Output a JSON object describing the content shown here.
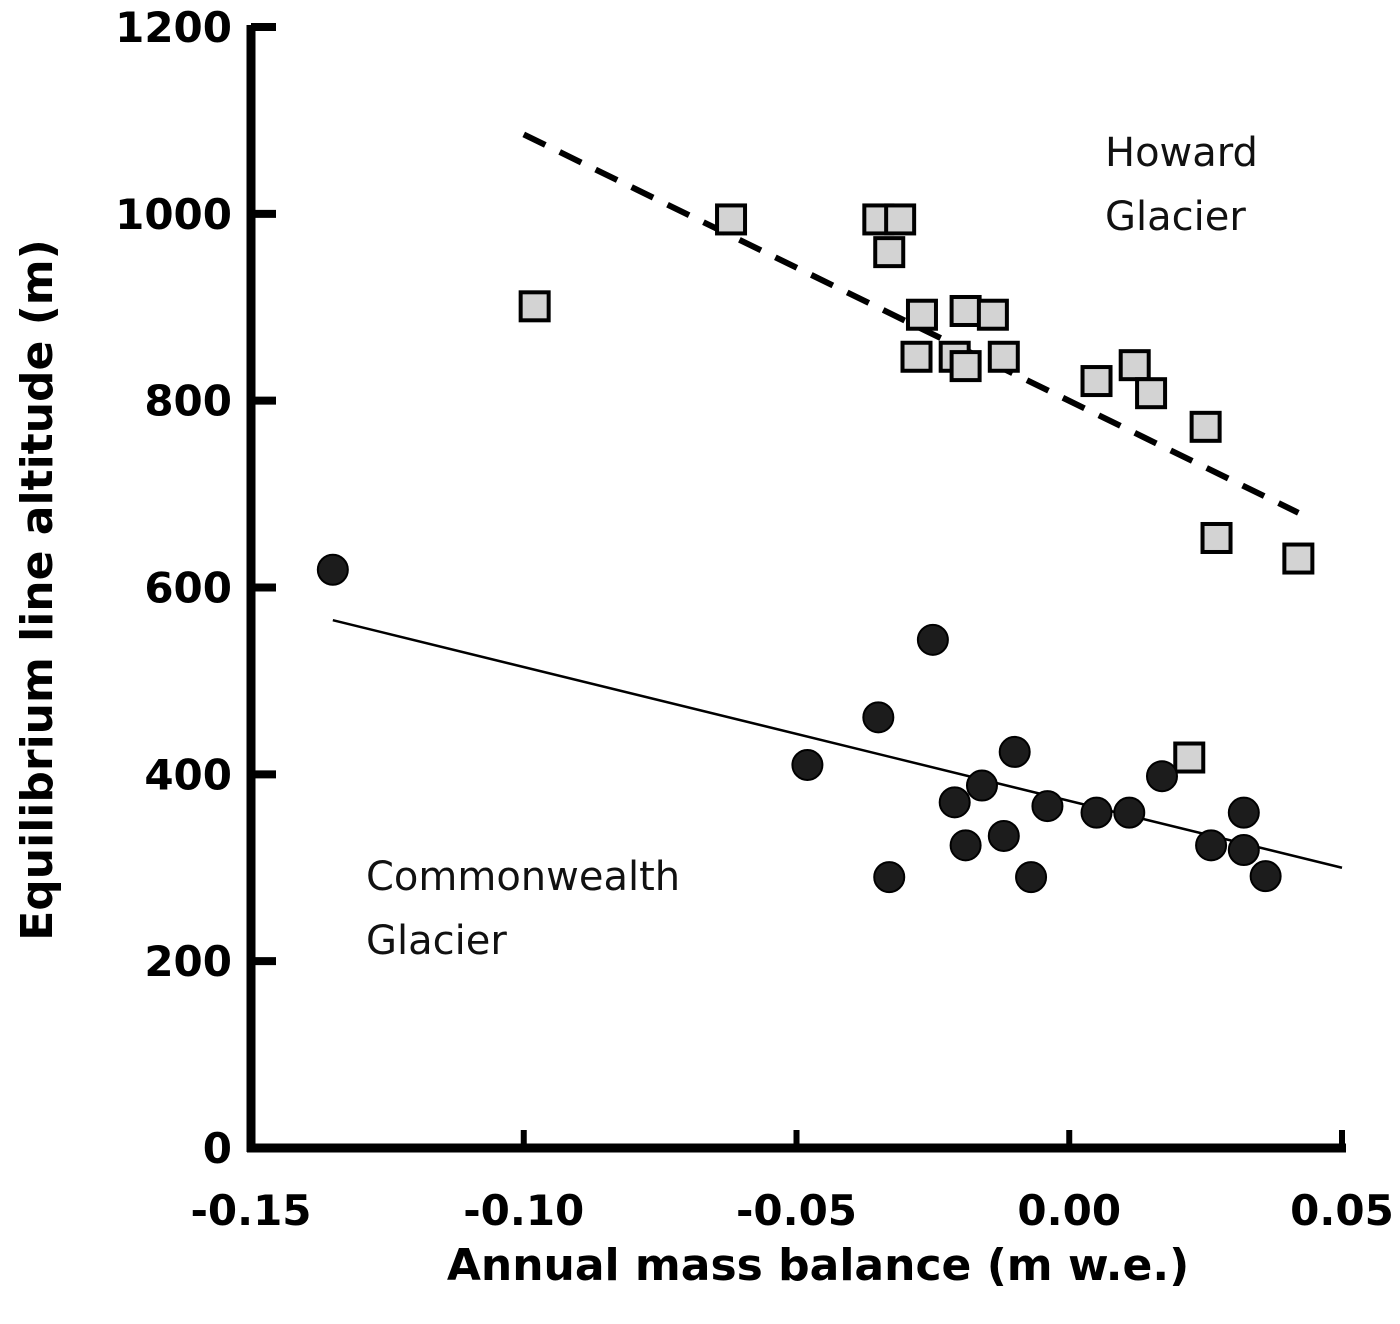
{
  "chart_data": {
    "type": "scatter",
    "title": "",
    "xlabel": "Annual mass balance (m w.e.)",
    "ylabel": "Equilibrium line altitude (m)",
    "xlim": [
      -0.15,
      0.05
    ],
    "ylim": [
      0,
      1200
    ],
    "xticks": [
      -0.15,
      -0.1,
      -0.05,
      0.0,
      0.05
    ],
    "xtick_labels": [
      "-0.15",
      "-0.10",
      "-0.05",
      "0.00",
      "0.05"
    ],
    "yticks": [
      0,
      200,
      400,
      600,
      800,
      1000,
      1200
    ],
    "ytick_labels": [
      "0",
      "200",
      "400",
      "600",
      "800",
      "1000",
      "1200"
    ],
    "grid": false,
    "legend": "none (inline annotations)",
    "series": [
      {
        "name": "Howard Glacier",
        "marker": "square",
        "fill": "#d3d3d3",
        "stroke": "#000000",
        "trend": {
          "style": "dashed",
          "x": [
            -0.1,
            0.042
          ],
          "y": [
            1085,
            680
          ]
        },
        "points": [
          [
            -0.098,
            901
          ],
          [
            -0.062,
            994
          ],
          [
            -0.035,
            994
          ],
          [
            -0.031,
            994
          ],
          [
            -0.033,
            959
          ],
          [
            -0.027,
            892
          ],
          [
            -0.019,
            896
          ],
          [
            -0.014,
            892
          ],
          [
            -0.028,
            847
          ],
          [
            -0.021,
            847
          ],
          [
            -0.019,
            837
          ],
          [
            -0.012,
            847
          ],
          [
            0.005,
            821
          ],
          [
            0.012,
            838
          ],
          [
            0.015,
            808
          ],
          [
            0.025,
            772
          ],
          [
            0.027,
            653
          ],
          [
            0.042,
            631
          ],
          [
            0.022,
            418
          ]
        ]
      },
      {
        "name": "Commonwealth Glacier",
        "marker": "circle",
        "fill": "#1c1c1c",
        "stroke": "#000000",
        "trend": {
          "style": "solid",
          "x": [
            -0.135,
            0.05
          ],
          "y": [
            565,
            300
          ]
        },
        "points": [
          [
            -0.135,
            619
          ],
          [
            -0.025,
            544
          ],
          [
            -0.035,
            461
          ],
          [
            -0.048,
            410
          ],
          [
            -0.01,
            424
          ],
          [
            -0.016,
            388
          ],
          [
            -0.021,
            370
          ],
          [
            -0.019,
            324
          ],
          [
            -0.012,
            334
          ],
          [
            -0.004,
            366
          ],
          [
            -0.033,
            290
          ],
          [
            -0.007,
            290
          ],
          [
            0.005,
            359
          ],
          [
            0.011,
            359
          ],
          [
            0.017,
            398
          ],
          [
            0.026,
            324
          ],
          [
            0.032,
            319
          ],
          [
            0.032,
            359
          ],
          [
            0.036,
            291
          ]
        ]
      }
    ],
    "annotations": [
      {
        "text_lines": [
          "Howard",
          "Glacier"
        ],
        "anchor": "top-right"
      },
      {
        "text_lines": [
          "Commonwealth",
          "Glacier"
        ],
        "anchor": "lower-left"
      }
    ]
  }
}
